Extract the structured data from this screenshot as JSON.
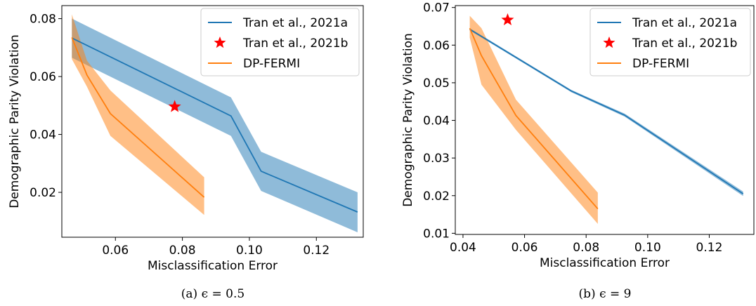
{
  "chart_data": [
    {
      "type": "line",
      "caption": "(a) ϵ = 0.5",
      "xlabel": "Misclassification Error",
      "ylabel": "Demographic Parity Violation",
      "xlim": [
        0.044,
        0.134
      ],
      "ylim": [
        0.0045,
        0.0845
      ],
      "xticks": [
        0.06,
        0.08,
        0.1,
        0.12
      ],
      "xtick_labels": [
        "0.06",
        "0.08",
        "0.10",
        "0.12"
      ],
      "yticks": [
        0.02,
        0.04,
        0.06,
        0.08
      ],
      "ytick_labels": [
        "0.02",
        "0.04",
        "0.06",
        "0.08"
      ],
      "legend": {
        "position": "top-right"
      },
      "series": [
        {
          "name": "Tran et al., 2021a",
          "kind": "line_band",
          "color": "#1f77b4",
          "x": [
            0.047,
            0.0945,
            0.1035,
            0.1323
          ],
          "y": [
            0.0733,
            0.0464,
            0.0273,
            0.0132
          ],
          "band_upper": [
            0.08,
            0.0528,
            0.034,
            0.02
          ],
          "band_lower": [
            0.0665,
            0.0395,
            0.0205,
            0.0062
          ]
        },
        {
          "name": "Tran et al., 2021b",
          "kind": "marker",
          "color": "#ff0000",
          "x": [
            0.0777
          ],
          "y": [
            0.0496
          ]
        },
        {
          "name": "DP-FERMI",
          "kind": "line_band",
          "color": "#ff7f0e",
          "x": [
            0.047,
            0.0515,
            0.0585,
            0.0865
          ],
          "y": [
            0.0735,
            0.0605,
            0.0472,
            0.0183
          ],
          "band_upper": [
            0.0815,
            0.0655,
            0.0552,
            0.0252
          ],
          "band_lower": [
            0.066,
            0.0565,
            0.0395,
            0.0122
          ]
        }
      ]
    },
    {
      "type": "line",
      "caption": "(b) ϵ = 9",
      "xlabel": "Misclassification Error",
      "ylabel": "Demographic Parity Violation",
      "xlim": [
        0.0375,
        0.1345
      ],
      "ylim": [
        0.0097,
        0.0705
      ],
      "xticks": [
        0.04,
        0.06,
        0.08,
        0.1,
        0.12
      ],
      "xtick_labels": [
        "0.04",
        "0.06",
        "0.08",
        "0.10",
        "0.12"
      ],
      "yticks": [
        0.01,
        0.02,
        0.03,
        0.04,
        0.05,
        0.06,
        0.07
      ],
      "ytick_labels": [
        "0.01",
        "0.02",
        "0.03",
        "0.04",
        "0.05",
        "0.06",
        "0.07"
      ],
      "legend": {
        "position": "top-right"
      },
      "series": [
        {
          "name": "Tran et al., 2021a",
          "kind": "line_band",
          "color": "#1f77b4",
          "x": [
            0.0422,
            0.0752,
            0.0925,
            0.131
          ],
          "y": [
            0.0642,
            0.0478,
            0.0414,
            0.0205
          ],
          "band_upper": [
            0.0645,
            0.0481,
            0.0418,
            0.0211
          ],
          "band_lower": [
            0.0639,
            0.0475,
            0.041,
            0.0199
          ]
        },
        {
          "name": "Tran et al., 2021b",
          "kind": "marker",
          "color": "#ff0000",
          "x": [
            0.0545
          ],
          "y": [
            0.0667
          ]
        },
        {
          "name": "DP-FERMI",
          "kind": "line_band",
          "color": "#ff7f0e",
          "x": [
            0.0422,
            0.046,
            0.0572,
            0.0838
          ],
          "y": [
            0.0645,
            0.0572,
            0.0413,
            0.0165
          ],
          "band_upper": [
            0.0678,
            0.0645,
            0.0455,
            0.0208
          ],
          "band_lower": [
            0.062,
            0.0495,
            0.0375,
            0.0125
          ]
        }
      ]
    }
  ]
}
